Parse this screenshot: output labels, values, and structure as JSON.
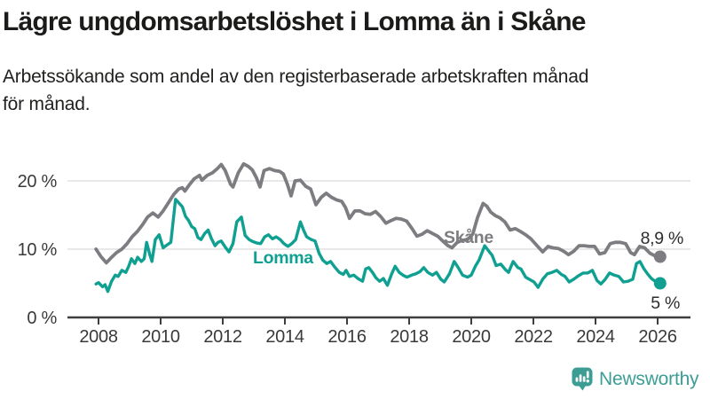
{
  "header": {
    "title": "Lägre ungdomsarbetslöshet i Lomma än i Skåne",
    "subtitle_line1": "Arbetssökande som andel av den registerbaserade arbetskraften månad",
    "subtitle_line2": "för månad."
  },
  "chart_data": {
    "type": "line",
    "title": "Lägre ungdomsarbetslöshet i Lomma än i Skåne",
    "subtitle": "Arbetssökande som andel av den registerbaserade arbetskraften månad för månad.",
    "xlabel": "",
    "ylabel": "",
    "grid": true,
    "legend_position": "inline-labels",
    "x_axis": {
      "ticks": [
        2008,
        2010,
        2012,
        2014,
        2016,
        2018,
        2020,
        2022,
        2024,
        2026
      ],
      "range": [
        2007.1,
        2027.1
      ]
    },
    "y_axis": {
      "ticks": [
        {
          "value": 0,
          "label": "0 %"
        },
        {
          "value": 10,
          "label": "10 %"
        },
        {
          "value": 20,
          "label": "20 %"
        }
      ],
      "gridlines": [
        10,
        20
      ],
      "range": [
        0,
        24
      ]
    },
    "series": [
      {
        "name": "Skåne",
        "slug": "skane",
        "color": "#7D7D81",
        "end_label": "8,9 %",
        "end_value": 8.9,
        "points": [
          [
            2007.92,
            10.0
          ],
          [
            2008.08,
            8.9
          ],
          [
            2008.25,
            8.0
          ],
          [
            2008.42,
            8.8
          ],
          [
            2008.58,
            9.5
          ],
          [
            2008.75,
            10.0
          ],
          [
            2008.92,
            10.8
          ],
          [
            2009.08,
            11.8
          ],
          [
            2009.25,
            12.6
          ],
          [
            2009.42,
            13.6
          ],
          [
            2009.58,
            14.7
          ],
          [
            2009.75,
            15.3
          ],
          [
            2009.92,
            14.7
          ],
          [
            2010.08,
            15.6
          ],
          [
            2010.25,
            16.8
          ],
          [
            2010.42,
            18.0
          ],
          [
            2010.58,
            18.8
          ],
          [
            2010.7,
            19.0
          ],
          [
            2010.78,
            18.5
          ],
          [
            2010.92,
            19.4
          ],
          [
            2011.08,
            20.3
          ],
          [
            2011.25,
            20.8
          ],
          [
            2011.33,
            20.1
          ],
          [
            2011.5,
            20.8
          ],
          [
            2011.67,
            21.2
          ],
          [
            2011.83,
            21.8
          ],
          [
            2011.95,
            22.4
          ],
          [
            2012.08,
            21.5
          ],
          [
            2012.25,
            19.5
          ],
          [
            2012.33,
            19.1
          ],
          [
            2012.5,
            21.2
          ],
          [
            2012.67,
            22.5
          ],
          [
            2012.83,
            22.1
          ],
          [
            2012.95,
            21.6
          ],
          [
            2013.08,
            20.5
          ],
          [
            2013.2,
            19.1
          ],
          [
            2013.33,
            21.5
          ],
          [
            2013.5,
            21.8
          ],
          [
            2013.67,
            21.5
          ],
          [
            2013.83,
            21.4
          ],
          [
            2013.95,
            21.0
          ],
          [
            2014.08,
            19.5
          ],
          [
            2014.2,
            17.8
          ],
          [
            2014.33,
            20.0
          ],
          [
            2014.5,
            20.1
          ],
          [
            2014.67,
            19.2
          ],
          [
            2014.83,
            18.8
          ],
          [
            2015.0,
            16.5
          ],
          [
            2015.17,
            17.6
          ],
          [
            2015.33,
            18.2
          ],
          [
            2015.5,
            17.6
          ],
          [
            2015.67,
            17.2
          ],
          [
            2015.83,
            17.0
          ],
          [
            2015.95,
            16.1
          ],
          [
            2016.08,
            14.5
          ],
          [
            2016.25,
            15.6
          ],
          [
            2016.42,
            15.6
          ],
          [
            2016.58,
            15.2
          ],
          [
            2016.75,
            15.1
          ],
          [
            2016.92,
            15.5
          ],
          [
            2017.08,
            14.8
          ],
          [
            2017.25,
            13.8
          ],
          [
            2017.42,
            14.2
          ],
          [
            2017.58,
            14.5
          ],
          [
            2017.75,
            14.4
          ],
          [
            2017.92,
            14.1
          ],
          [
            2018.08,
            13.1
          ],
          [
            2018.25,
            11.9
          ],
          [
            2018.42,
            12.2
          ],
          [
            2018.58,
            12.7
          ],
          [
            2018.75,
            12.3
          ],
          [
            2018.92,
            11.9
          ],
          [
            2019.08,
            11.2
          ],
          [
            2019.25,
            10.5
          ],
          [
            2019.38,
            10.2
          ],
          [
            2019.55,
            11.0
          ],
          [
            2019.72,
            11.3
          ],
          [
            2019.88,
            11.4
          ],
          [
            2020.05,
            12.2
          ],
          [
            2020.2,
            14.6
          ],
          [
            2020.38,
            16.7
          ],
          [
            2020.5,
            16.3
          ],
          [
            2020.63,
            15.4
          ],
          [
            2020.78,
            14.9
          ],
          [
            2020.92,
            14.6
          ],
          [
            2021.08,
            14.0
          ],
          [
            2021.25,
            12.8
          ],
          [
            2021.42,
            13.0
          ],
          [
            2021.58,
            12.6
          ],
          [
            2021.75,
            12.1
          ],
          [
            2021.92,
            11.5
          ],
          [
            2022.08,
            10.7
          ],
          [
            2022.3,
            9.6
          ],
          [
            2022.47,
            10.4
          ],
          [
            2022.63,
            10.2
          ],
          [
            2022.8,
            10.1
          ],
          [
            2022.97,
            9.7
          ],
          [
            2023.13,
            9.2
          ],
          [
            2023.3,
            9.7
          ],
          [
            2023.47,
            10.5
          ],
          [
            2023.63,
            10.5
          ],
          [
            2023.8,
            10.4
          ],
          [
            2023.97,
            10.4
          ],
          [
            2024.13,
            9.3
          ],
          [
            2024.3,
            9.5
          ],
          [
            2024.47,
            10.8
          ],
          [
            2024.63,
            11.0
          ],
          [
            2024.8,
            11.0
          ],
          [
            2024.97,
            10.8
          ],
          [
            2025.13,
            9.5
          ],
          [
            2025.25,
            9.2
          ],
          [
            2025.42,
            10.4
          ],
          [
            2025.58,
            10.2
          ],
          [
            2025.75,
            9.4
          ],
          [
            2025.92,
            9.0
          ],
          [
            2026.08,
            8.9
          ]
        ]
      },
      {
        "name": "Lomma",
        "slug": "lomma",
        "color": "#0FA092",
        "end_label": "5 %",
        "end_value": 5,
        "points": [
          [
            2007.92,
            4.9
          ],
          [
            2008.0,
            5.1
          ],
          [
            2008.13,
            4.5
          ],
          [
            2008.21,
            4.8
          ],
          [
            2008.3,
            3.8
          ],
          [
            2008.42,
            5.3
          ],
          [
            2008.54,
            6.2
          ],
          [
            2008.63,
            6.0
          ],
          [
            2008.75,
            6.9
          ],
          [
            2008.88,
            6.6
          ],
          [
            2008.97,
            7.5
          ],
          [
            2009.06,
            8.6
          ],
          [
            2009.17,
            7.9
          ],
          [
            2009.26,
            8.8
          ],
          [
            2009.38,
            8.2
          ],
          [
            2009.47,
            8.6
          ],
          [
            2009.55,
            11.0
          ],
          [
            2009.65,
            9.2
          ],
          [
            2009.72,
            8.2
          ],
          [
            2009.83,
            11.4
          ],
          [
            2009.95,
            12.1
          ],
          [
            2010.08,
            10.2
          ],
          [
            2010.2,
            10.6
          ],
          [
            2010.33,
            11.0
          ],
          [
            2010.48,
            17.3
          ],
          [
            2010.58,
            16.8
          ],
          [
            2010.7,
            16.2
          ],
          [
            2010.8,
            14.8
          ],
          [
            2010.9,
            14.2
          ],
          [
            2011.0,
            13.3
          ],
          [
            2011.1,
            13.0
          ],
          [
            2011.2,
            11.7
          ],
          [
            2011.3,
            11.4
          ],
          [
            2011.42,
            12.3
          ],
          [
            2011.53,
            12.8
          ],
          [
            2011.63,
            11.6
          ],
          [
            2011.75,
            10.5
          ],
          [
            2011.85,
            11.0
          ],
          [
            2011.95,
            11.2
          ],
          [
            2012.08,
            10.3
          ],
          [
            2012.2,
            9.6
          ],
          [
            2012.33,
            10.8
          ],
          [
            2012.45,
            14.0
          ],
          [
            2012.6,
            14.7
          ],
          [
            2012.72,
            12.0
          ],
          [
            2012.85,
            11.4
          ],
          [
            2012.97,
            11.1
          ],
          [
            2013.1,
            10.9
          ],
          [
            2013.22,
            10.8
          ],
          [
            2013.35,
            11.8
          ],
          [
            2013.47,
            12.1
          ],
          [
            2013.6,
            11.5
          ],
          [
            2013.72,
            11.8
          ],
          [
            2013.85,
            11.4
          ],
          [
            2013.97,
            10.8
          ],
          [
            2014.1,
            10.4
          ],
          [
            2014.22,
            10.8
          ],
          [
            2014.35,
            11.4
          ],
          [
            2014.5,
            14.0
          ],
          [
            2014.6,
            12.8
          ],
          [
            2014.7,
            11.8
          ],
          [
            2014.85,
            11.4
          ],
          [
            2014.97,
            11.2
          ],
          [
            2015.1,
            9.4
          ],
          [
            2015.22,
            8.4
          ],
          [
            2015.35,
            7.9
          ],
          [
            2015.47,
            8.2
          ],
          [
            2015.6,
            7.4
          ],
          [
            2015.75,
            6.6
          ],
          [
            2015.88,
            6.3
          ],
          [
            2015.97,
            6.9
          ],
          [
            2016.08,
            6.0
          ],
          [
            2016.22,
            6.2
          ],
          [
            2016.35,
            5.7
          ],
          [
            2016.5,
            5.3
          ],
          [
            2016.6,
            7.1
          ],
          [
            2016.7,
            7.3
          ],
          [
            2016.82,
            6.6
          ],
          [
            2016.93,
            5.8
          ],
          [
            2017.05,
            5.3
          ],
          [
            2017.17,
            5.7
          ],
          [
            2017.3,
            4.7
          ],
          [
            2017.43,
            6.3
          ],
          [
            2017.55,
            7.5
          ],
          [
            2017.68,
            6.6
          ],
          [
            2017.8,
            6.2
          ],
          [
            2017.93,
            5.9
          ],
          [
            2018.08,
            6.2
          ],
          [
            2018.22,
            6.4
          ],
          [
            2018.35,
            6.7
          ],
          [
            2018.47,
            7.3
          ],
          [
            2018.6,
            6.6
          ],
          [
            2018.75,
            6.2
          ],
          [
            2018.88,
            6.6
          ],
          [
            2019.02,
            5.6
          ],
          [
            2019.13,
            5.2
          ],
          [
            2019.3,
            6.4
          ],
          [
            2019.45,
            8.2
          ],
          [
            2019.58,
            7.3
          ],
          [
            2019.72,
            6.2
          ],
          [
            2019.88,
            5.9
          ],
          [
            2020.0,
            6.2
          ],
          [
            2020.13,
            7.5
          ],
          [
            2020.25,
            8.4
          ],
          [
            2020.43,
            10.5
          ],
          [
            2020.55,
            9.8
          ],
          [
            2020.67,
            9.1
          ],
          [
            2020.8,
            7.6
          ],
          [
            2020.95,
            7.8
          ],
          [
            2021.1,
            7.0
          ],
          [
            2021.2,
            6.6
          ],
          [
            2021.35,
            8.2
          ],
          [
            2021.5,
            7.3
          ],
          [
            2021.6,
            7.1
          ],
          [
            2021.75,
            5.9
          ],
          [
            2021.9,
            5.5
          ],
          [
            2022.02,
            5.2
          ],
          [
            2022.15,
            4.4
          ],
          [
            2022.3,
            5.6
          ],
          [
            2022.45,
            6.4
          ],
          [
            2022.6,
            6.6
          ],
          [
            2022.75,
            6.9
          ],
          [
            2022.9,
            6.3
          ],
          [
            2023.02,
            6.0
          ],
          [
            2023.15,
            5.2
          ],
          [
            2023.3,
            5.6
          ],
          [
            2023.45,
            6.1
          ],
          [
            2023.6,
            6.5
          ],
          [
            2023.75,
            6.5
          ],
          [
            2023.9,
            6.9
          ],
          [
            2024.05,
            5.4
          ],
          [
            2024.17,
            4.9
          ],
          [
            2024.3,
            5.5
          ],
          [
            2024.45,
            6.5
          ],
          [
            2024.6,
            6.2
          ],
          [
            2024.75,
            6.0
          ],
          [
            2024.9,
            5.2
          ],
          [
            2025.05,
            5.3
          ],
          [
            2025.2,
            5.6
          ],
          [
            2025.32,
            7.9
          ],
          [
            2025.43,
            8.2
          ],
          [
            2025.55,
            7.2
          ],
          [
            2025.67,
            6.4
          ],
          [
            2025.8,
            5.7
          ],
          [
            2025.95,
            5.2
          ],
          [
            2026.08,
            5.0
          ]
        ]
      }
    ]
  },
  "footer": {
    "brand": "Newsworthy",
    "brand_color": "#3C9D94",
    "logo_icon_name": "newsworthy-speech-bubble-bar-chart-icon"
  }
}
